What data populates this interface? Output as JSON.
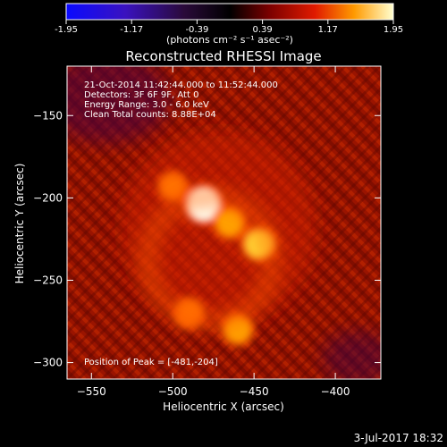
{
  "chart_data": {
    "type": "heatmap",
    "title": "Reconstructed RHESSI Image",
    "xlabel": "Heliocentric X (arcsec)",
    "ylabel": "Heliocentric Y (arcsec)",
    "xlim": [
      -565,
      -372
    ],
    "ylim": [
      -310,
      -120
    ],
    "xticks": [
      -550,
      -500,
      -450,
      -400
    ],
    "yticks": [
      -150,
      -200,
      -250,
      -300
    ],
    "colorbar": {
      "label": "(photons cm⁻² s⁻¹ asec⁻²)",
      "min": -1.95,
      "max": 1.95,
      "ticks": [
        "-1.95",
        "-1.17",
        "-0.39",
        "0.39",
        "1.17",
        "1.95"
      ],
      "colormap": "blue-purple-red-yellow-white"
    },
    "annotations": [
      "21-Oct-2014 11:42:44.000 to 11:52:44.000",
      "Detectors: 3F 6F 9F, Att 0",
      "Energy Range: 3.0 - 6.0 keV",
      "Clean     Total counts: 8.88E+04"
    ],
    "peak_text": "Position of Peak = [-481,-204]",
    "peak": [
      -481,
      -204
    ],
    "sources": [
      {
        "x": -481,
        "y": -204,
        "intensity": 1.95
      },
      {
        "x": -465,
        "y": -215,
        "intensity": 1.25
      },
      {
        "x": -447,
        "y": -228,
        "intensity": 1.45
      },
      {
        "x": -460,
        "y": -280,
        "intensity": 1.15
      },
      {
        "x": -490,
        "y": -270,
        "intensity": 0.95
      },
      {
        "x": -500,
        "y": -193,
        "intensity": 0.85
      }
    ],
    "timestamp": "3-Jul-2017 18:32"
  }
}
